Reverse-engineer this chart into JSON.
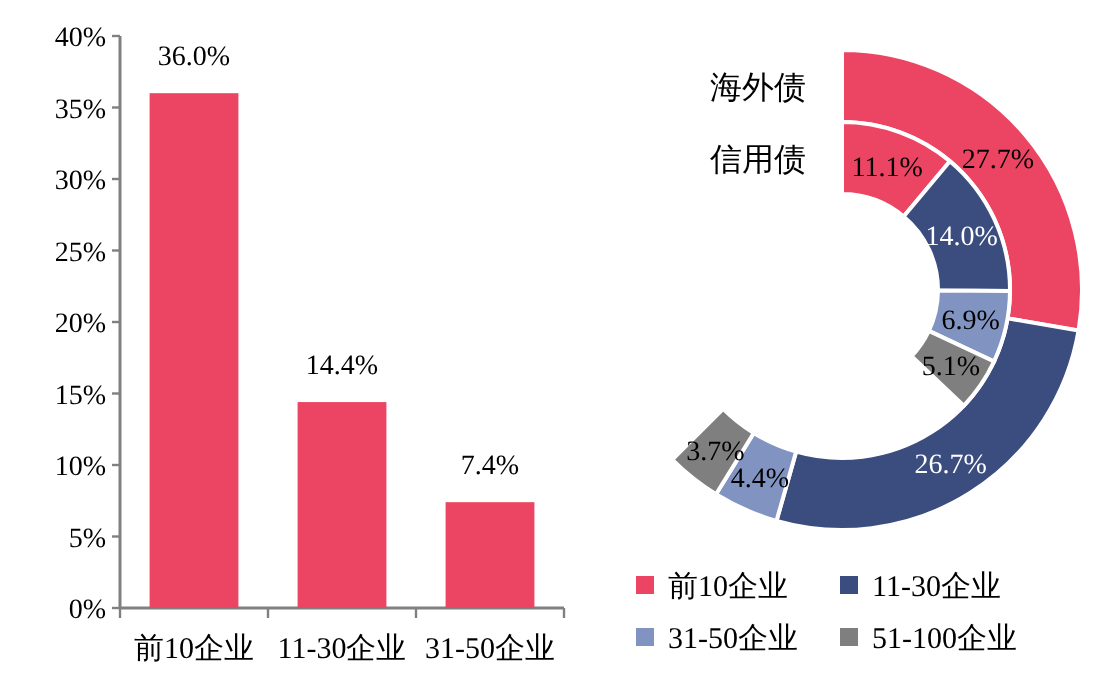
{
  "chart_data": [
    {
      "type": "bar",
      "categories": [
        "前10企业",
        "11-30企业",
        "31-50企业"
      ],
      "values": [
        36.0,
        14.4,
        7.4
      ],
      "value_labels": [
        "36.0%",
        "14.4%",
        "7.4%"
      ],
      "color": "#eb4563",
      "ylim": [
        0,
        40
      ],
      "yticks": [
        {
          "value": 0,
          "label": "0%"
        },
        {
          "value": 5,
          "label": "5%"
        },
        {
          "value": 10,
          "label": "10%"
        },
        {
          "value": 15,
          "label": "15%"
        },
        {
          "value": 20,
          "label": "20%"
        },
        {
          "value": 25,
          "label": "25%"
        },
        {
          "value": 30,
          "label": "30%"
        },
        {
          "value": 35,
          "label": "35%"
        },
        {
          "value": 40,
          "label": "40%"
        }
      ]
    },
    {
      "type": "donut",
      "categories": [
        "前10企业",
        "11-30企业",
        "31-50企业",
        "51-100企业"
      ],
      "colors": [
        "#eb4563",
        "#3b4c7e",
        "#8193c0",
        "#7f7f7f"
      ],
      "legend": "bottom",
      "series": [
        {
          "name": "海外债",
          "values": [
            27.7,
            26.7,
            4.4,
            3.7
          ],
          "value_labels": [
            "27.7%",
            "26.7%",
            "4.4%",
            "3.7%"
          ]
        },
        {
          "name": "信用债",
          "values": [
            11.1,
            14.0,
            6.9,
            5.1
          ],
          "value_labels": [
            "11.1%",
            "14.0%",
            "6.9%",
            "5.1%"
          ]
        }
      ]
    }
  ]
}
